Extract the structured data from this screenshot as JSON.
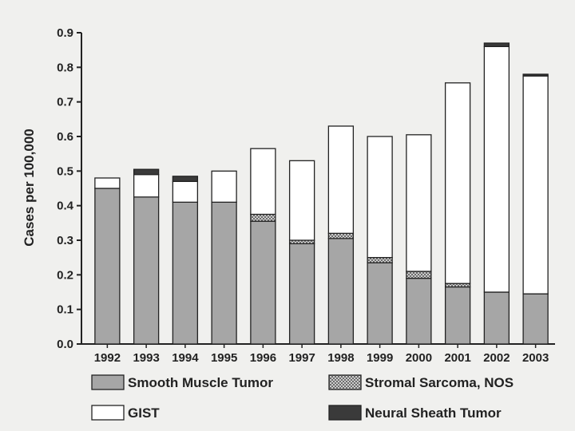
{
  "chart_data": {
    "type": "bar",
    "stacked": true,
    "title": "",
    "xlabel": "",
    "ylabel": "Cases per 100,000",
    "ylim": [
      0,
      0.9
    ],
    "yticks": [
      "0.0",
      "0.1",
      "0.2",
      "0.3",
      "0.4",
      "0.5",
      "0.6",
      "0.7",
      "0.8",
      "0.9"
    ],
    "grid": false,
    "legend_position": "bottom",
    "categories": [
      "1992",
      "1993",
      "1994",
      "1995",
      "1996",
      "1997",
      "1998",
      "1999",
      "2000",
      "2001",
      "2002",
      "2003"
    ],
    "series": [
      {
        "name": "Smooth Muscle Tumor",
        "pattern": "solid",
        "color": "#a6a6a6",
        "values": [
          0.45,
          0.425,
          0.41,
          0.41,
          0.355,
          0.29,
          0.305,
          0.235,
          0.19,
          0.165,
          0.15,
          0.145
        ]
      },
      {
        "name": "Stromal Sarcoma, NOS",
        "pattern": "crosshatch",
        "color": "#d0d0d0",
        "values": [
          0.0,
          0.0,
          0.0,
          0.0,
          0.02,
          0.01,
          0.015,
          0.015,
          0.02,
          0.01,
          0.0,
          0.0
        ]
      },
      {
        "name": "GIST",
        "pattern": "solid",
        "color": "#ffffff",
        "values": [
          0.03,
          0.065,
          0.06,
          0.09,
          0.19,
          0.23,
          0.31,
          0.35,
          0.395,
          0.58,
          0.71,
          0.63
        ]
      },
      {
        "name": "Neural Sheath Tumor",
        "pattern": "solid",
        "color": "#3a3a3a",
        "values": [
          0.0,
          0.015,
          0.015,
          0.0,
          0.0,
          0.0,
          0.0,
          0.0,
          0.0,
          0.0,
          0.01,
          0.005
        ]
      }
    ]
  }
}
